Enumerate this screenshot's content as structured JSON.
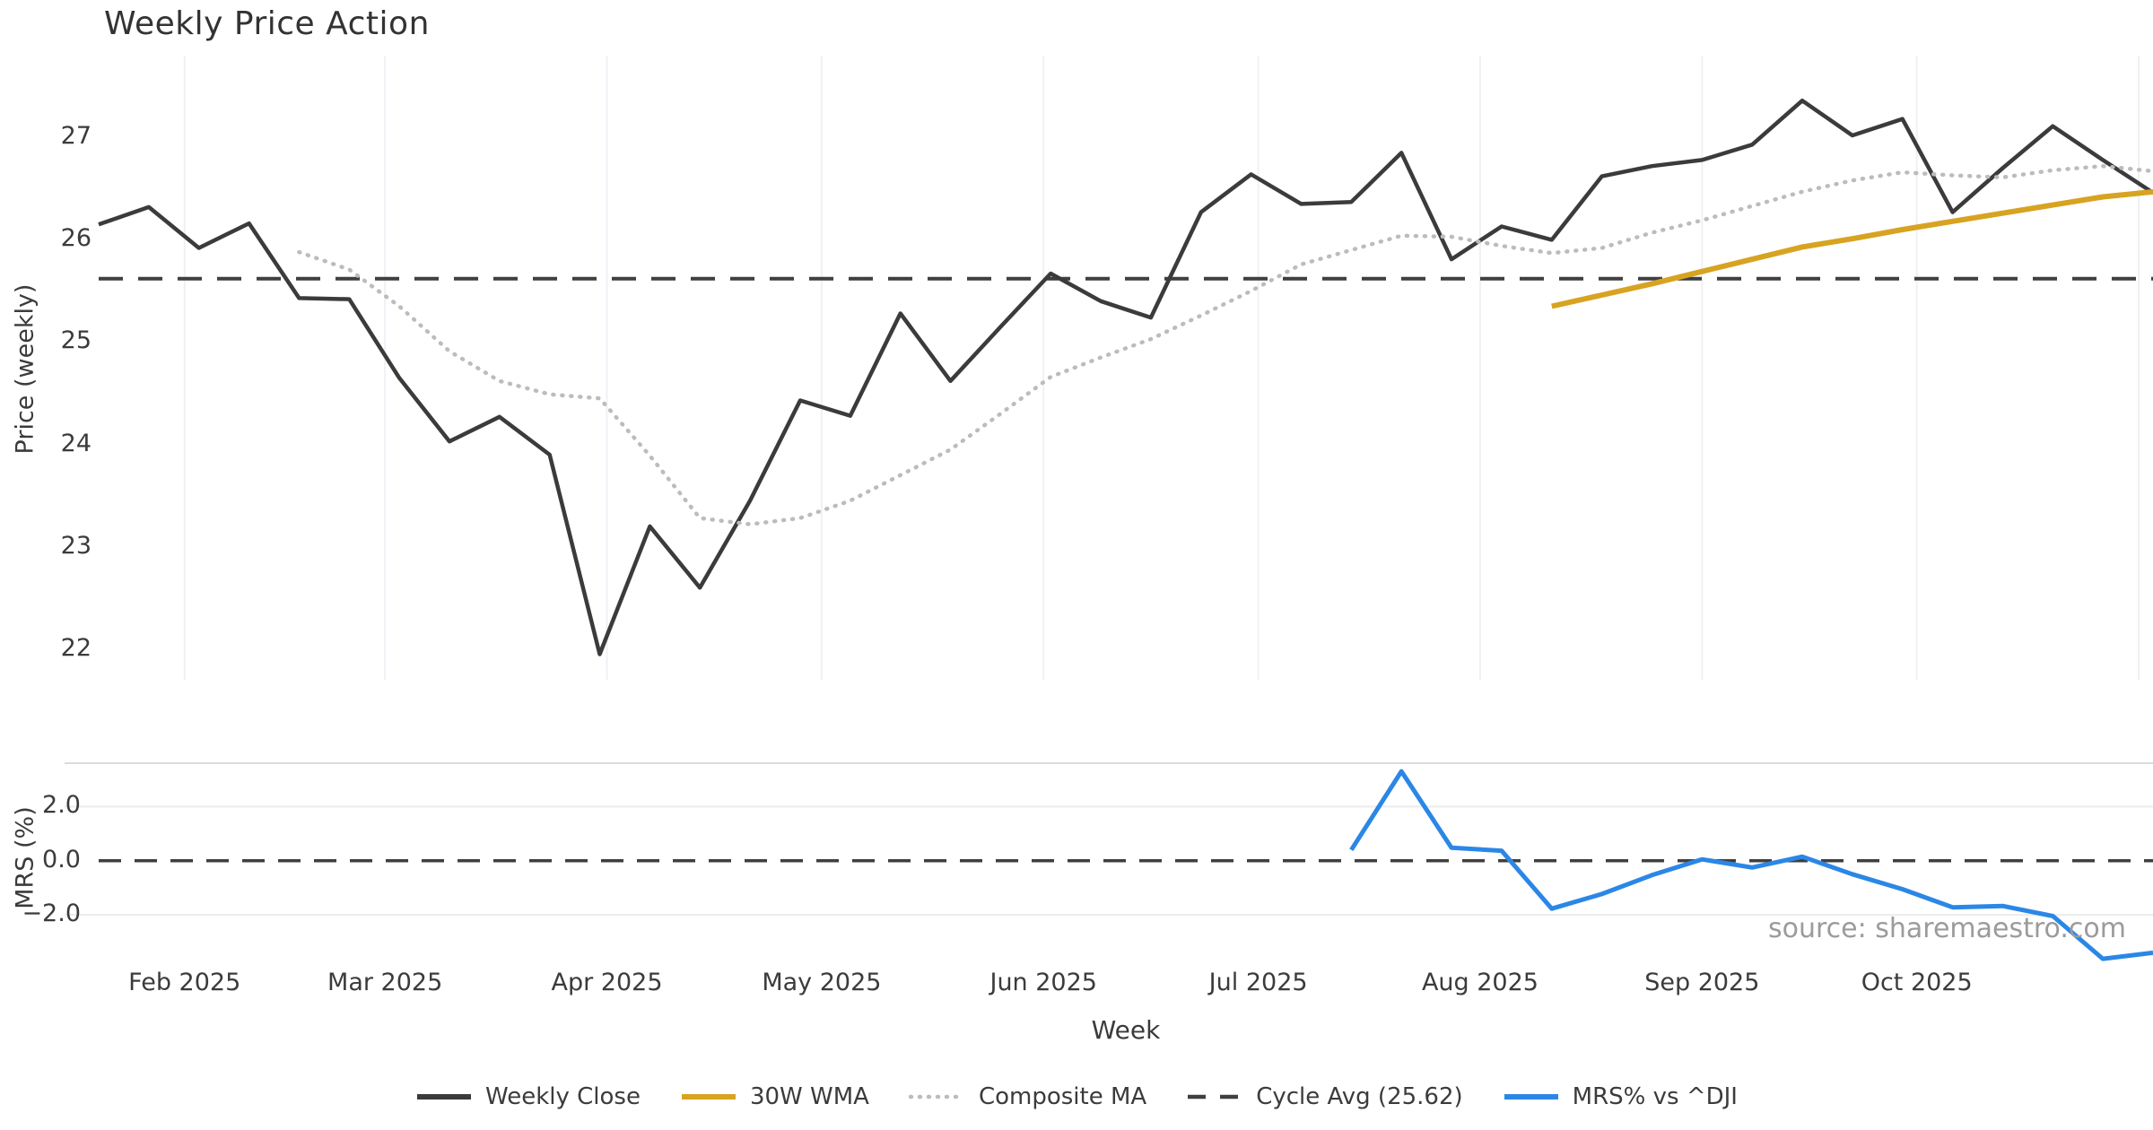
{
  "title": "Weekly Price Action",
  "watermark": "source: sharemaestro.com",
  "axes": {
    "price_ylabel": "Price (weekly)",
    "mrs_ylabel": "MRS (%)",
    "xlabel": "Week"
  },
  "legend": [
    {
      "label": "Weekly Close",
      "color": "#3b3b3b",
      "style": "solid"
    },
    {
      "label": "30W WMA",
      "color": "#d7a321",
      "style": "solid"
    },
    {
      "label": "Composite MA",
      "color": "#bcbcbc",
      "style": "dotted"
    },
    {
      "label": "Cycle Avg (25.62)",
      "color": "#3f3f3f",
      "style": "dashed"
    },
    {
      "label": "MRS% vs ^DJI",
      "color": "#2b87e6",
      "style": "solid"
    }
  ],
  "chart_data": [
    {
      "type": "line",
      "panel": "price",
      "title": "Weekly Price Action",
      "ylabel": "Price (weekly)",
      "xlabel": "Week",
      "ylim": [
        21.7,
        27.8
      ],
      "yticks": [
        27,
        26,
        25,
        24,
        23,
        22
      ],
      "grid": "vertical-months-only",
      "x_weekly_start": "2025-01-20",
      "x": [
        "2025-01-20",
        "2025-01-27",
        "2025-02-03",
        "2025-02-10",
        "2025-02-17",
        "2025-02-24",
        "2025-03-03",
        "2025-03-10",
        "2025-03-17",
        "2025-03-24",
        "2025-03-31",
        "2025-04-07",
        "2025-04-14",
        "2025-04-21",
        "2025-04-28",
        "2025-05-05",
        "2025-05-12",
        "2025-05-19",
        "2025-05-26",
        "2025-06-02",
        "2025-06-09",
        "2025-06-16",
        "2025-06-23",
        "2025-06-30",
        "2025-07-07",
        "2025-07-14",
        "2025-07-21",
        "2025-07-28",
        "2025-08-04",
        "2025-08-11",
        "2025-08-18",
        "2025-08-25",
        "2025-09-01",
        "2025-09-08",
        "2025-09-15",
        "2025-09-22",
        "2025-09-29",
        "2025-10-06",
        "2025-10-13",
        "2025-10-20",
        "2025-10-27",
        "2025-11-03"
      ],
      "series": [
        {
          "name": "Weekly Close",
          "color": "#3b3b3b",
          "style": "solid",
          "width": 4.5,
          "start_index": 0,
          "values": [
            26.15,
            26.32,
            25.92,
            26.16,
            25.43,
            25.42,
            24.65,
            24.03,
            24.27,
            23.9,
            21.95,
            23.2,
            22.6,
            23.45,
            24.43,
            24.28,
            25.28,
            24.62,
            25.15,
            25.67,
            25.4,
            25.24,
            26.27,
            26.64,
            26.35,
            26.37,
            26.85,
            25.81,
            26.13,
            26.0,
            26.62,
            26.72,
            26.78,
            26.93,
            27.36,
            27.02,
            27.18,
            26.27,
            26.7,
            27.11,
            26.78,
            26.46
          ]
        },
        {
          "name": "30W WMA",
          "color": "#d7a321",
          "style": "solid",
          "width": 6,
          "start_index": 29,
          "values": [
            25.35,
            25.46,
            25.57,
            25.69,
            25.81,
            25.93,
            26.01,
            26.1,
            26.18,
            26.26,
            26.34,
            26.42,
            26.47
          ]
        },
        {
          "name": "Composite MA",
          "color": "#bcbcbc",
          "style": "dotted",
          "width": 4.5,
          "start_index": 4,
          "values": [
            25.88,
            25.71,
            25.35,
            24.91,
            24.62,
            24.49,
            24.45,
            23.89,
            23.28,
            23.22,
            23.28,
            23.45,
            23.7,
            23.95,
            24.3,
            24.66,
            24.85,
            25.03,
            25.26,
            25.5,
            25.76,
            25.9,
            26.04,
            26.03,
            25.94,
            25.87,
            25.92,
            26.07,
            26.19,
            26.33,
            26.47,
            26.58,
            26.66,
            26.63,
            26.61,
            26.68,
            26.72,
            26.67
          ]
        },
        {
          "name": "Cycle Avg (25.62)",
          "color": "#3f3f3f",
          "style": "dashed",
          "width": 4,
          "hline": 25.62
        }
      ],
      "month_ticks": [
        {
          "label": "Feb 2025",
          "date": "2025-02-01"
        },
        {
          "label": "Mar 2025",
          "date": "2025-03-01"
        },
        {
          "label": "Apr 2025",
          "date": "2025-04-01"
        },
        {
          "label": "May 2025",
          "date": "2025-05-01"
        },
        {
          "label": "Jun 2025",
          "date": "2025-06-01"
        },
        {
          "label": "Jul 2025",
          "date": "2025-07-01"
        },
        {
          "label": "Aug 2025",
          "date": "2025-08-01"
        },
        {
          "label": "Sep 2025",
          "date": "2025-09-01"
        },
        {
          "label": "Oct 2025",
          "date": "2025-10-01"
        },
        {
          "label": "",
          "date": "2025-11-01"
        }
      ]
    },
    {
      "type": "line",
      "panel": "mrs",
      "ylabel": "MRS (%)",
      "ylim": [
        -3.65,
        3.6
      ],
      "yticks": [
        2.0,
        0.0,
        -2.0
      ],
      "grid": "horizontal-only",
      "series": [
        {
          "name": "MRS% vs ^DJI",
          "color": "#2b87e6",
          "style": "solid",
          "width": 5,
          "start_index": 25,
          "values": [
            0.4,
            3.3,
            0.48,
            0.37,
            -1.77,
            -1.23,
            -0.53,
            0.05,
            -0.25,
            0.15,
            -0.5,
            -1.05,
            -1.72,
            -1.67,
            -2.04,
            -3.62,
            -3.4
          ]
        },
        {
          "name": "zero-line",
          "color": "#3f3f3f",
          "style": "dashed",
          "width": 3.5,
          "hline": 0
        }
      ]
    }
  ]
}
